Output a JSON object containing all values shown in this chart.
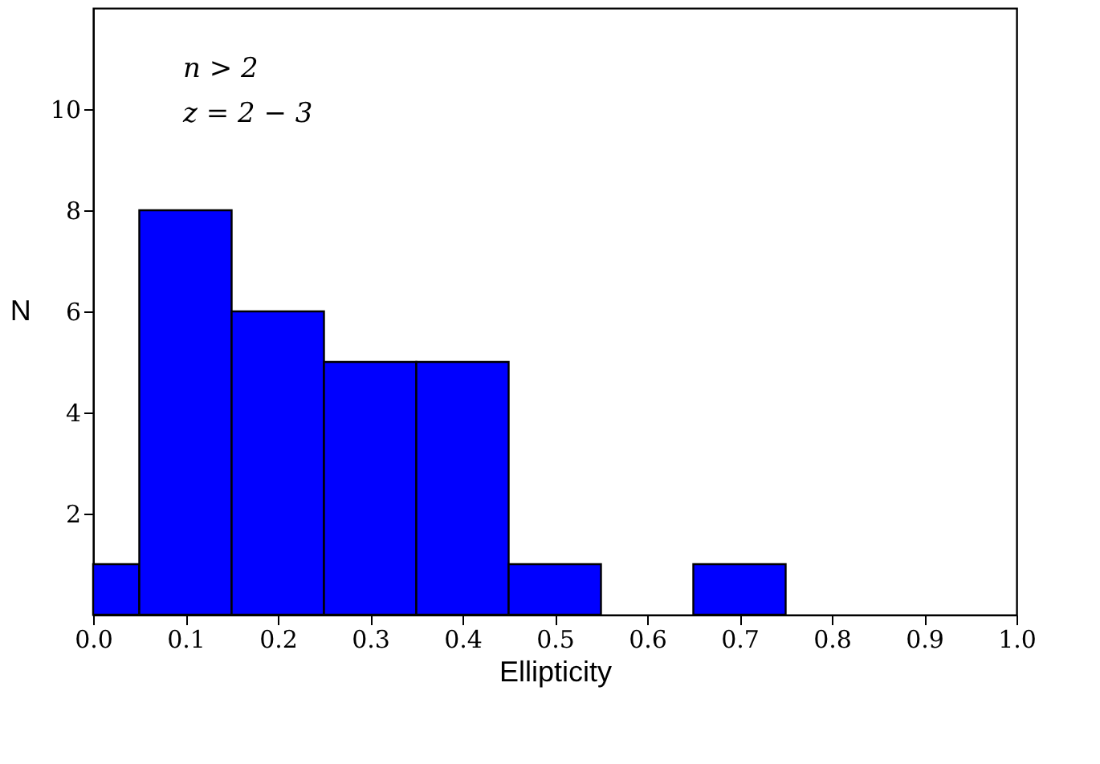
{
  "chart_data": {
    "type": "histogram",
    "xlabel": "Ellipticity",
    "ylabel": "N",
    "bins": [
      0.0,
      0.05,
      0.15,
      0.25,
      0.35,
      0.45,
      0.55,
      0.65,
      0.75
    ],
    "values": [
      1,
      8,
      6,
      5,
      5,
      1,
      0,
      1
    ],
    "color": "#0000ff",
    "xlim": [
      0.0,
      1.0
    ],
    "xticks": [
      {
        "value": 0,
        "label": "0.0"
      },
      0.1,
      0.2,
      0.3,
      0.4,
      0.5,
      0.6,
      0.7,
      0.8,
      0.9,
      {
        "value": 1,
        "label": "1.0"
      }
    ],
    "ylim": [
      0,
      12
    ],
    "yticks": [
      2,
      4,
      6,
      8,
      10
    ],
    "grid": false,
    "annotations": [
      "n > 2",
      "z = 2 − 3"
    ]
  }
}
